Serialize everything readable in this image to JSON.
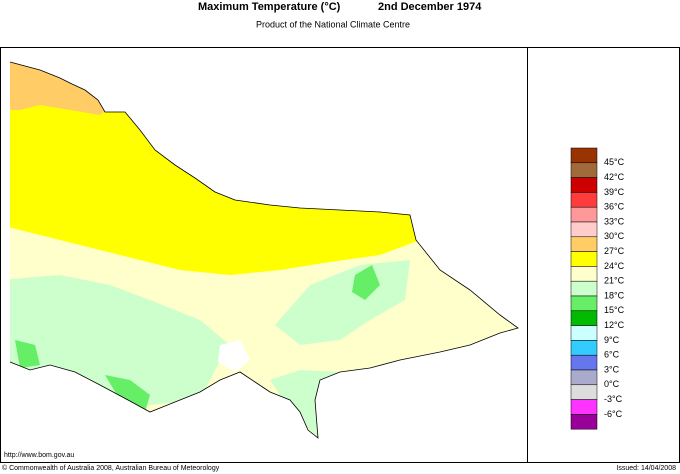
{
  "header": {
    "title": "Maximum Temperature (°C)",
    "date": "2nd December 1974",
    "subtitle": "Product of the National Climate Centre"
  },
  "legend": {
    "colors": [
      "#993300",
      "#a06a3a",
      "#cc0000",
      "#ff3b3b",
      "#ff9999",
      "#ffcccc",
      "#ffcc66",
      "#ffff00",
      "#ffffcc",
      "#ccffcc",
      "#66ee66",
      "#00bb00",
      "#ccffff",
      "#33ccff",
      "#6677ee",
      "#aaaacc",
      "#dddddd",
      "#ff33ff",
      "#990099"
    ],
    "labels": [
      "45°C",
      "42°C",
      "39°C",
      "36°C",
      "33°C",
      "30°C",
      "27°C",
      "24°C",
      "21°C",
      "18°C",
      "15°C",
      "12°C",
      "9°C",
      "6°C",
      "3°C",
      "0°C",
      "-3°C",
      "-6°C"
    ]
  },
  "footer": {
    "url": "http://www.bom.gov.au",
    "copyright": "© Commonwealth of Australia 2008, Australian Bureau of Meteorology",
    "issued": "Issued: 14/04/2008"
  }
}
